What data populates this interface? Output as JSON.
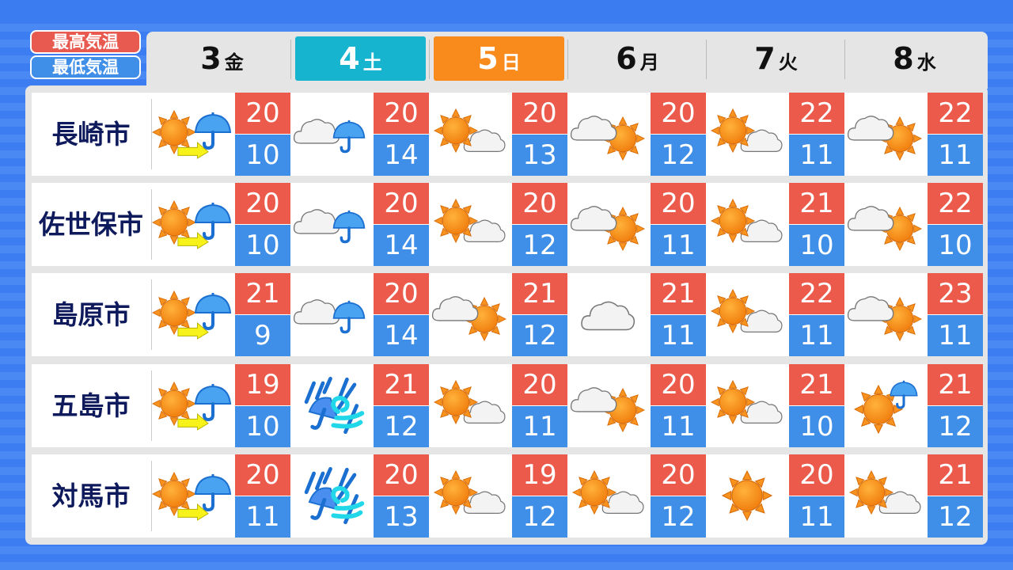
{
  "legend": {
    "high": "最高気温",
    "low": "最低気温"
  },
  "colors": {
    "high": "#ec5a4c",
    "low": "#3f8ee8",
    "saturday": "#16b4cf",
    "sunday": "#f98a1c",
    "city_text": "#0e1a5c"
  },
  "days": [
    {
      "num": "3",
      "weekday": "金",
      "style": "weekday"
    },
    {
      "num": "4",
      "weekday": "土",
      "style": "saturday"
    },
    {
      "num": "5",
      "weekday": "日",
      "style": "sunday"
    },
    {
      "num": "6",
      "weekday": "月",
      "style": "weekday"
    },
    {
      "num": "7",
      "weekday": "火",
      "style": "weekday"
    },
    {
      "num": "8",
      "weekday": "水",
      "style": "weekday"
    }
  ],
  "cities": [
    {
      "name": "長崎市",
      "forecast": [
        {
          "icon": "sun-then-rain",
          "high": "20",
          "low": "10"
        },
        {
          "icon": "cloud-rain",
          "high": "20",
          "low": "14"
        },
        {
          "icon": "sun-cloud",
          "high": "20",
          "low": "13"
        },
        {
          "icon": "cloud-sun",
          "high": "20",
          "low": "12"
        },
        {
          "icon": "sun-cloud",
          "high": "22",
          "low": "11"
        },
        {
          "icon": "cloud-sun",
          "high": "22",
          "low": "11"
        }
      ]
    },
    {
      "name": "佐世保市",
      "forecast": [
        {
          "icon": "sun-then-rain",
          "high": "20",
          "low": "10"
        },
        {
          "icon": "cloud-rain",
          "high": "20",
          "low": "14"
        },
        {
          "icon": "sun-cloud",
          "high": "20",
          "low": "12"
        },
        {
          "icon": "cloud-sun",
          "high": "20",
          "low": "11"
        },
        {
          "icon": "sun-cloud",
          "high": "21",
          "low": "10"
        },
        {
          "icon": "cloud-sun",
          "high": "22",
          "low": "10"
        }
      ]
    },
    {
      "name": "島原市",
      "forecast": [
        {
          "icon": "sun-then-rain",
          "high": "21",
          "low": "9"
        },
        {
          "icon": "cloud-rain",
          "high": "20",
          "low": "14"
        },
        {
          "icon": "cloud-sun",
          "high": "21",
          "low": "12"
        },
        {
          "icon": "cloud",
          "high": "21",
          "low": "11"
        },
        {
          "icon": "sun-cloud",
          "high": "22",
          "low": "11"
        },
        {
          "icon": "cloud-sun",
          "high": "23",
          "low": "11"
        }
      ]
    },
    {
      "name": "五島市",
      "forecast": [
        {
          "icon": "sun-then-rain",
          "high": "19",
          "low": "10"
        },
        {
          "icon": "storm",
          "high": "21",
          "low": "12"
        },
        {
          "icon": "sun-cloud",
          "high": "20",
          "low": "11"
        },
        {
          "icon": "cloud-sun",
          "high": "20",
          "low": "11"
        },
        {
          "icon": "sun-cloud",
          "high": "21",
          "low": "10"
        },
        {
          "icon": "sun-rain",
          "high": "21",
          "low": "12"
        }
      ]
    },
    {
      "name": "対馬市",
      "forecast": [
        {
          "icon": "sun-then-rain",
          "high": "20",
          "low": "11"
        },
        {
          "icon": "storm",
          "high": "20",
          "low": "13"
        },
        {
          "icon": "sun-cloud",
          "high": "19",
          "low": "12"
        },
        {
          "icon": "sun-cloud",
          "high": "20",
          "low": "12"
        },
        {
          "icon": "sun",
          "high": "20",
          "low": "11"
        },
        {
          "icon": "sun-cloud",
          "high": "21",
          "low": "12"
        }
      ]
    }
  ]
}
